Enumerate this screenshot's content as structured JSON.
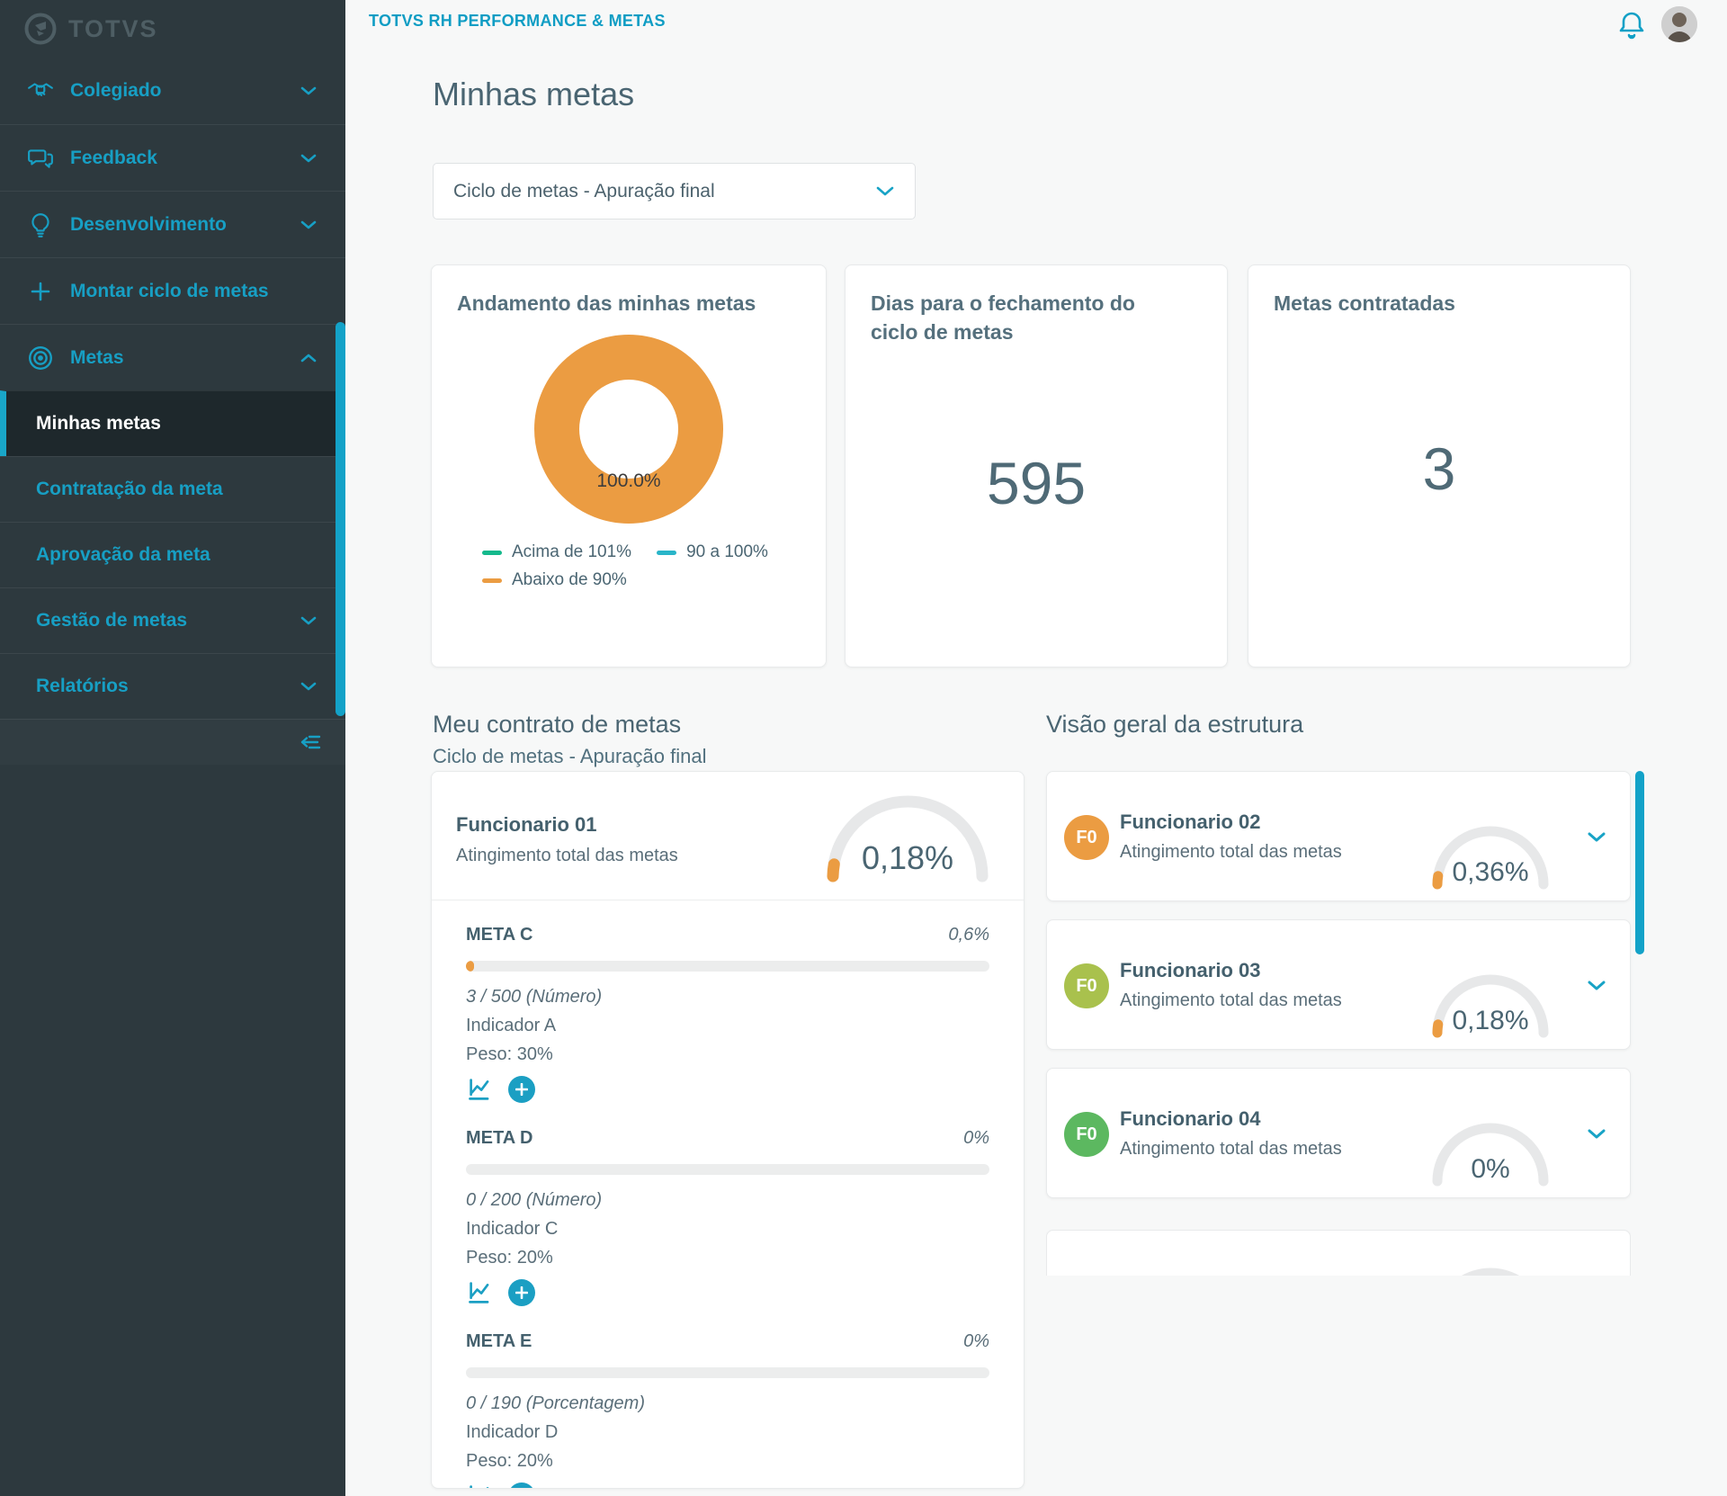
{
  "app": {
    "brand": "TOTVS",
    "header_title": "TOTVS RH PERFORMANCE & METAS"
  },
  "sidebar": {
    "items": [
      {
        "label": "Colegiado",
        "icon": "handshake",
        "chevron": "down"
      },
      {
        "label": "Feedback",
        "icon": "chat",
        "chevron": "down"
      },
      {
        "label": "Desenvolvimento",
        "icon": "lightbulb",
        "chevron": "down"
      },
      {
        "label": "Montar ciclo de metas",
        "icon": "plus",
        "chevron": "none"
      },
      {
        "label": "Metas",
        "icon": "target",
        "chevron": "up"
      }
    ],
    "submenu": [
      {
        "label": "Minhas metas",
        "active": true
      },
      {
        "label": "Contratação da meta",
        "active": false
      },
      {
        "label": "Aprovação da meta",
        "active": false
      },
      {
        "label": "Gestão de metas",
        "active": false,
        "chevron": "down"
      },
      {
        "label": "Relatórios",
        "active": false,
        "chevron": "down"
      }
    ]
  },
  "page": {
    "title": "Minhas metas"
  },
  "cycle_select": {
    "value": "Ciclo de metas - Apuração final"
  },
  "kpi_cards": {
    "progress": {
      "title": "Andamento das minhas metas",
      "center_label": "100.0%",
      "legend": [
        {
          "label": "Acima de 101%",
          "color": "#14b98c"
        },
        {
          "label": "90 a 100%",
          "color": "#29b5c9"
        },
        {
          "label": "Abaixo de 90%",
          "color": "#eb9c42"
        }
      ]
    },
    "days": {
      "title": "Dias para o fechamento do ciclo de metas",
      "value": "595"
    },
    "contracted": {
      "title": "Metas contratadas",
      "value": "3"
    }
  },
  "chart_data": {
    "type": "pie",
    "title": "Andamento das minhas metas",
    "categories": [
      "Acima de 101%",
      "90 a 100%",
      "Abaixo de 90%"
    ],
    "values": [
      0,
      0,
      100
    ],
    "colors": [
      "#14b98c",
      "#29b5c9",
      "#eb9c42"
    ],
    "center_label": "100.0%",
    "legend_position": "bottom"
  },
  "contract": {
    "section_title": "Meu contrato de metas",
    "section_subtitle": "Ciclo de metas - Apuração final",
    "employee": {
      "name": "Funcionario 01",
      "subtitle": "Atingimento total das metas",
      "total": "0,18%"
    },
    "metas": [
      {
        "name": "META C",
        "value": "0,6%",
        "fill_pct": 1.5,
        "progress_text": "3 / 500 (Número)",
        "indicator": "Indicador A",
        "weight": "Peso: 30%"
      },
      {
        "name": "META D",
        "value": "0%",
        "fill_pct": 0,
        "progress_text": "0 / 200 (Número)",
        "indicator": "Indicador C",
        "weight": "Peso: 20%"
      },
      {
        "name": "META E",
        "value": "0%",
        "fill_pct": 0,
        "progress_text": "0 / 190 (Porcentagem)",
        "indicator": "Indicador D",
        "weight": "Peso: 20%"
      }
    ]
  },
  "structure": {
    "section_title": "Visão geral da estrutura",
    "employees": [
      {
        "initials": "F0",
        "avatar_color": "#eb9c42",
        "name": "Funcionario 02",
        "subtitle": "Atingimento total das metas",
        "total": "0,36%"
      },
      {
        "initials": "F0",
        "avatar_color": "#a9c14d",
        "name": "Funcionario 03",
        "subtitle": "Atingimento total das metas",
        "total": "0,18%"
      },
      {
        "initials": "F0",
        "avatar_color": "#5cb860",
        "name": "Funcionario 04",
        "subtitle": "Atingimento total das metas",
        "total": "0%"
      }
    ]
  },
  "colors": {
    "primary_teal": "#179fc4",
    "scrollbar_cyan": "#13a2c8",
    "slate_text": "#4a6572",
    "orange": "#eb9c42",
    "sidebar_bg": "#2d393e",
    "sidebar_active_bg": "#1e282c",
    "page_bg": "#f7f8f8",
    "gauge_track": "#e7e8e9"
  }
}
